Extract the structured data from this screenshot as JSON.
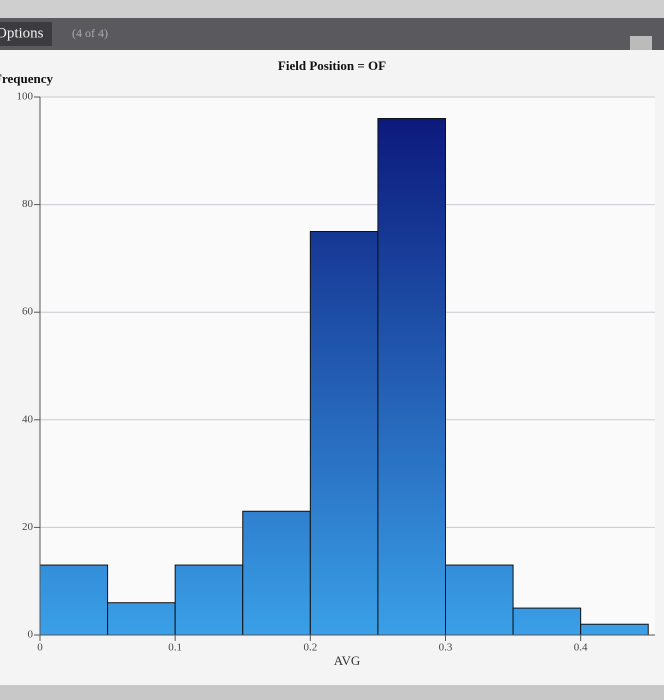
{
  "header": {
    "tab": "Options",
    "count": "(4 of 4)"
  },
  "chart_data": {
    "type": "histogram",
    "title": "Field Position = OF",
    "xlabel": "AVG",
    "ylabel": "Frequency",
    "bins": [
      0,
      0.05,
      0.1,
      0.15,
      0.2,
      0.25,
      0.3,
      0.35,
      0.4,
      0.45
    ],
    "values": [
      13,
      6,
      13,
      23,
      75,
      96,
      13,
      5,
      2
    ],
    "color_top": "#0a1478",
    "color_bottom": "#3aa0e8",
    "xlim": [
      0,
      0.455
    ],
    "xticks": [
      0,
      0.1,
      0.2,
      0.3,
      0.4
    ],
    "ylim": [
      0,
      100
    ],
    "yticks": [
      0,
      20,
      40,
      60,
      80,
      100
    ],
    "grid": true
  }
}
